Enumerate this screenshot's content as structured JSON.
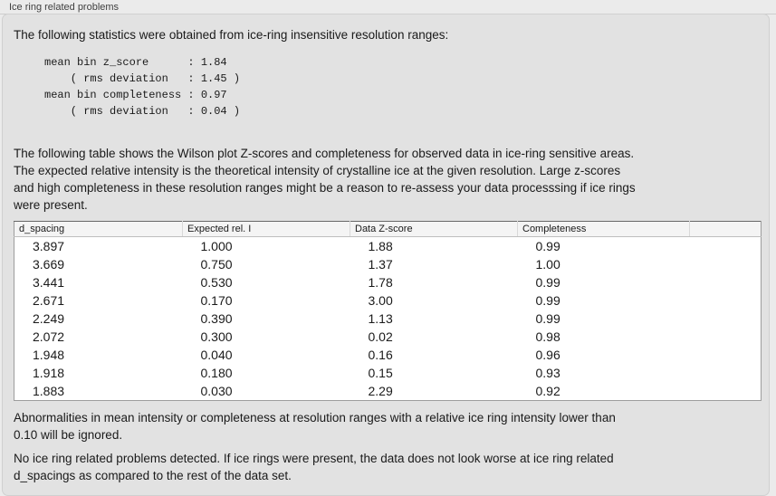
{
  "panel_title": "Ice ring related problems",
  "intro": "The following statistics were obtained from ice-ring insensitive resolution ranges:",
  "stats": {
    "colon_column": 22,
    "entries": [
      {
        "label": "mean bin z_score",
        "value": "1.84",
        "parenthetical": false
      },
      {
        "label": "( rms deviation",
        "value": "1.45",
        "parenthetical": true
      },
      {
        "label": "mean bin completeness",
        "value": "0.97",
        "parenthetical": false
      },
      {
        "label": "( rms deviation",
        "value": "0.04",
        "parenthetical": true
      }
    ]
  },
  "description": "The following table shows the Wilson plot Z-scores and completeness for observed data in ice-ring sensitive areas.\nThe expected relative intensity is the theoretical intensity of crystalline ice at the given resolution. Large z-scores\nand high completeness in these resolution ranges might be a reason to re-assess your data processsing if ice rings\nwere present.",
  "table": {
    "columns": [
      "d_spacing",
      "Expected rel. I",
      "Data Z-score",
      "Completeness",
      ""
    ],
    "rows": [
      [
        "3.897",
        "1.000",
        "1.88",
        "0.99"
      ],
      [
        "3.669",
        "0.750",
        "1.37",
        "1.00"
      ],
      [
        "3.441",
        "0.530",
        "1.78",
        "0.99"
      ],
      [
        "2.671",
        "0.170",
        "3.00",
        "0.99"
      ],
      [
        "2.249",
        "0.390",
        "1.13",
        "0.99"
      ],
      [
        "2.072",
        "0.300",
        "0.02",
        "0.98"
      ],
      [
        "1.948",
        "0.040",
        "0.16",
        "0.96"
      ],
      [
        "1.918",
        "0.180",
        "0.15",
        "0.93"
      ],
      [
        "1.883",
        "0.030",
        "2.29",
        "0.92"
      ]
    ]
  },
  "note_threshold": "Abnormalities in mean intensity or completeness at resolution ranges with a relative ice ring intensity lower than\n0.10 will be ignored.",
  "conclusion": "No ice ring related problems detected. If ice rings were present, the data does not look worse at ice ring related\nd_spacings as compared to the rest of the data set.",
  "colors": {
    "outer_background": "#ebebeb",
    "panel_background": "#e2e2e2",
    "table_background": "#ffffff",
    "header_background": "#f4f4f4",
    "text": "#1a1a1a"
  }
}
